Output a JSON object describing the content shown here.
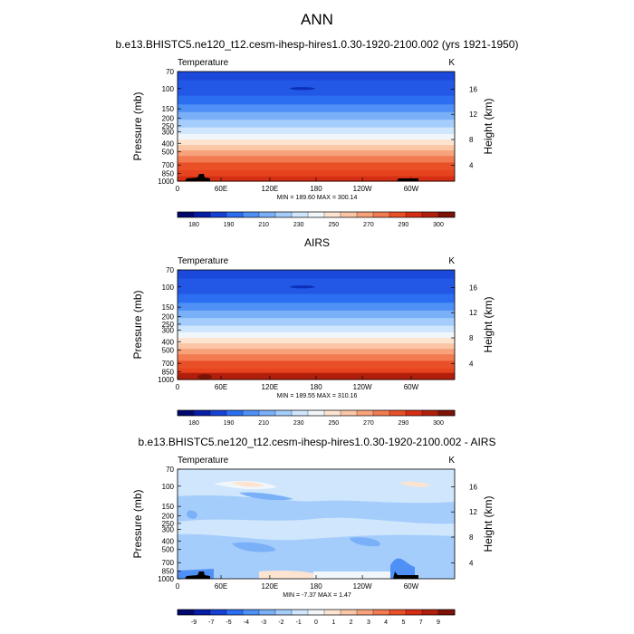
{
  "main_title": "ANN",
  "colors": {
    "temp_levels": [
      "#00076e",
      "#061da5",
      "#1542d4",
      "#2c6ef2",
      "#4e90f6",
      "#79b0f8",
      "#a5cdfc",
      "#cfe6fd",
      "#f1f6fb",
      "#fde4d1",
      "#fbc6a6",
      "#f7a27a",
      "#f27b52",
      "#ea5028",
      "#d62e14",
      "#b11f0c",
      "#7d1206"
    ],
    "diff_levels": [
      "#00076e",
      "#061da5",
      "#1542d4",
      "#2c6ef2",
      "#4e90f6",
      "#79b0f8",
      "#a5cdfc",
      "#cfe6fd",
      "#f1f6fb",
      "#fde4d1",
      "#fbc6a6",
      "#f7a27a",
      "#f27b52",
      "#ea5028",
      "#d62e14",
      "#b11f0c",
      "#7d1206"
    ],
    "terrain": "#000000"
  },
  "chart_data": [
    {
      "type": "heatmap",
      "title": "b.e13.BHISTC5.ne120_t12.cesm-ihesp-hires1.0.30-1920-2100.002 (yrs 1921-1950)",
      "left_label": "Temperature",
      "right_label": "K",
      "ylabel": "Pressure (mb)",
      "ylabel_right": "Height (km)",
      "x_ticks": [
        "0",
        "60E",
        "120E",
        "180",
        "120W",
        "60W"
      ],
      "y_ticks": [
        "70",
        "100",
        "150",
        "200",
        "250",
        "300",
        "400",
        "500",
        "700",
        "850",
        "1000"
      ],
      "y_ticks_right": [
        "16",
        "12",
        "8",
        "4"
      ],
      "stats": "MIN = 189.60  MAX = 300.14",
      "min": 189.6,
      "max": 300.14,
      "colorbar_labels": [
        "180",
        "190",
        "210",
        "230",
        "250",
        "270",
        "290",
        "300"
      ]
    },
    {
      "type": "heatmap",
      "title": "AIRS",
      "left_label": "Temperature",
      "right_label": "K",
      "ylabel": "Pressure (mb)",
      "ylabel_right": "Height (km)",
      "x_ticks": [
        "0",
        "60E",
        "120E",
        "180",
        "120W",
        "60W"
      ],
      "y_ticks": [
        "70",
        "100",
        "150",
        "200",
        "250",
        "300",
        "400",
        "500",
        "700",
        "850",
        "1000"
      ],
      "y_ticks_right": [
        "16",
        "12",
        "8",
        "4"
      ],
      "stats": "MIN = 189.55  MAX = 310.16",
      "min": 189.55,
      "max": 310.16,
      "colorbar_labels": [
        "180",
        "190",
        "210",
        "230",
        "250",
        "270",
        "290",
        "300"
      ]
    },
    {
      "type": "heatmap",
      "title": "b.e13.BHISTC5.ne120_t12.cesm-ihesp-hires1.0.30-1920-2100.002 - AIRS",
      "left_label": "Temperature",
      "right_label": "K",
      "ylabel": "Pressure (mb)",
      "ylabel_right": "Height (km)",
      "x_ticks": [
        "0",
        "60E",
        "120E",
        "180",
        "120W",
        "60W"
      ],
      "y_ticks": [
        "70",
        "100",
        "150",
        "200",
        "250",
        "300",
        "400",
        "500",
        "700",
        "850",
        "1000"
      ],
      "y_ticks_right": [
        "16",
        "12",
        "8",
        "4"
      ],
      "stats": "MIN = -7.37  MAX =  1.47",
      "min": -7.37,
      "max": 1.47,
      "colorbar_labels": [
        "-9",
        "-7",
        "-5",
        "-4",
        "-3",
        "-2",
        "-1",
        "0",
        "1",
        "2",
        "3",
        "4",
        "5",
        "7",
        "9"
      ]
    }
  ]
}
